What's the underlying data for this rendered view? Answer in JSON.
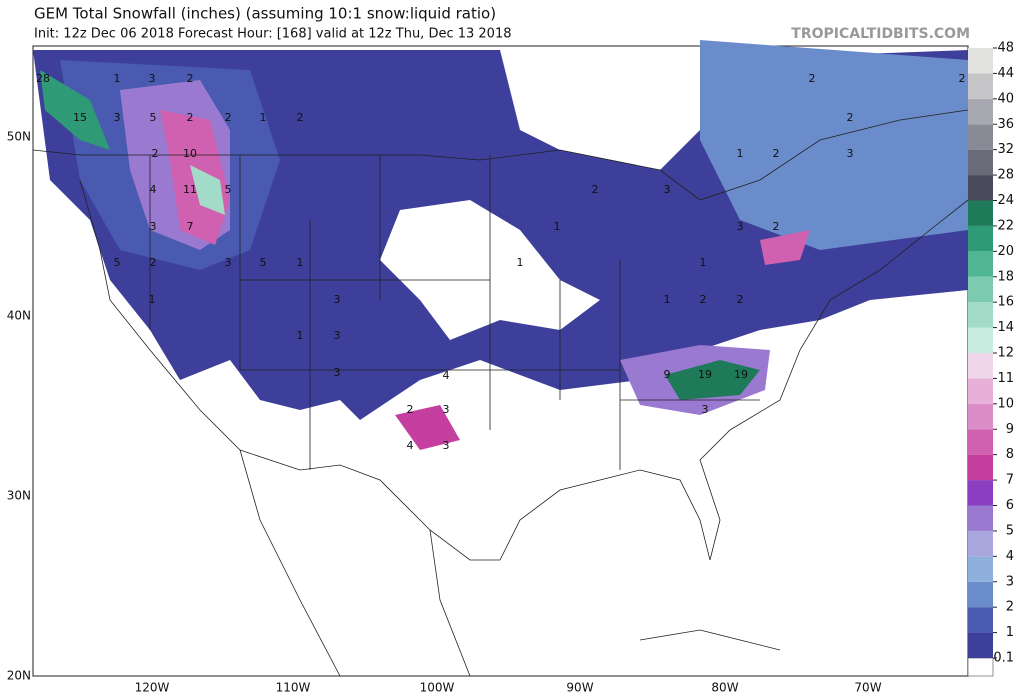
{
  "header": {
    "title": "GEM Total Snowfall (inches) (assuming 10:1 snow:liquid ratio)",
    "subtitle": "Init: 12z Dec 06 2018   Forecast Hour: [168]   valid at 12z Thu, Dec 13 2018",
    "site": "TROPICALTIDBITS.COM"
  },
  "axes": {
    "lat_labels": [
      "50N",
      "40N",
      "30N",
      "20N"
    ],
    "lon_labels": [
      "120W",
      "110W",
      "100W",
      "90W",
      "80W",
      "70W"
    ]
  },
  "colorbar": {
    "levels": [
      {
        "value": 0.1,
        "label": "0.1"
      },
      1,
      2,
      3,
      4,
      5,
      6,
      7,
      8,
      9,
      10,
      11,
      12,
      14,
      16,
      18,
      20,
      22,
      24,
      28,
      32,
      36,
      40,
      44,
      48
    ],
    "colors": [
      "#3d3f9a",
      "#4a5ab0",
      "#6b8ccb",
      "#8fb0dc",
      "#a9a5dd",
      "#9a7ad0",
      "#8b3fc0",
      "#c43fa0",
      "#d060b0",
      "#dc8cc6",
      "#e6b0d8",
      "#f0d6ea",
      "#c8ece0",
      "#a2dcc8",
      "#7ccbb0",
      "#4fb592",
      "#2e9a76",
      "#1e7a58",
      "#4a4a5a",
      "#6a6a78",
      "#8a8a96",
      "#a8a8b0",
      "#c6c6c8",
      "#e2e2e0"
    ]
  },
  "map_labels": [
    "28",
    "1",
    "3",
    "2",
    "15",
    "3",
    "5",
    "2",
    "2",
    "1",
    "2",
    "10",
    "2",
    "4",
    "11",
    "5",
    "7",
    "3",
    "5",
    "2",
    "3",
    "5",
    "1",
    "1",
    "3",
    "1",
    "3",
    "3",
    "4",
    "2",
    "3",
    "4",
    "3",
    "1",
    "1",
    "2",
    "3",
    "1",
    "2",
    "2",
    "9",
    "19",
    "19",
    "3",
    "2",
    "1",
    "2",
    "3",
    "2",
    "2",
    "3",
    "2",
    "1"
  ]
}
